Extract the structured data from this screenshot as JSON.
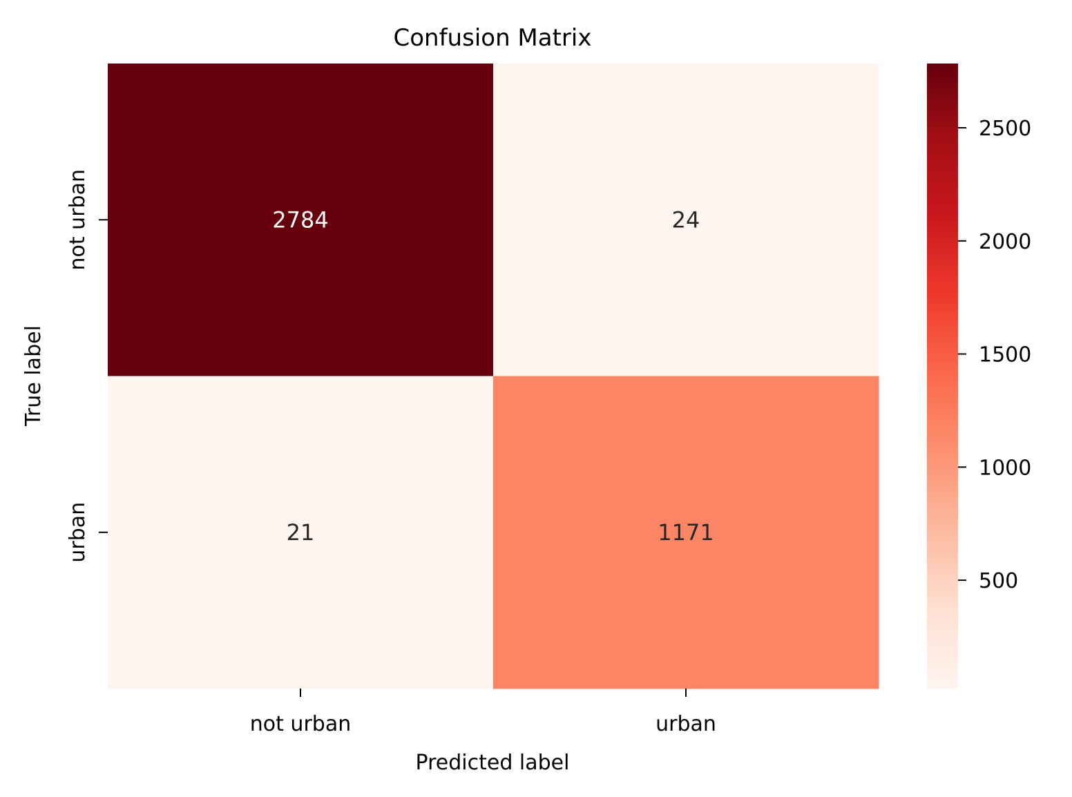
{
  "chart_data": {
    "type": "heatmap",
    "title": "Confusion Matrix",
    "xlabel": "Predicted label",
    "ylabel": "True label",
    "x_categories": [
      "not urban",
      "urban"
    ],
    "y_categories": [
      "not urban",
      "urban"
    ],
    "values": [
      [
        2784,
        24
      ],
      [
        21,
        1171
      ]
    ],
    "colormap": "Reds",
    "color_range": [
      21,
      2784
    ],
    "colorbar_ticks": [
      500,
      1000,
      1500,
      2000,
      2500
    ],
    "colorbar_tick_labels": [
      "500",
      "1000",
      "1500",
      "2000",
      "2500"
    ],
    "grid": false,
    "annotation_colors": {
      "dark": "#262626",
      "light": "#ffffff"
    }
  }
}
